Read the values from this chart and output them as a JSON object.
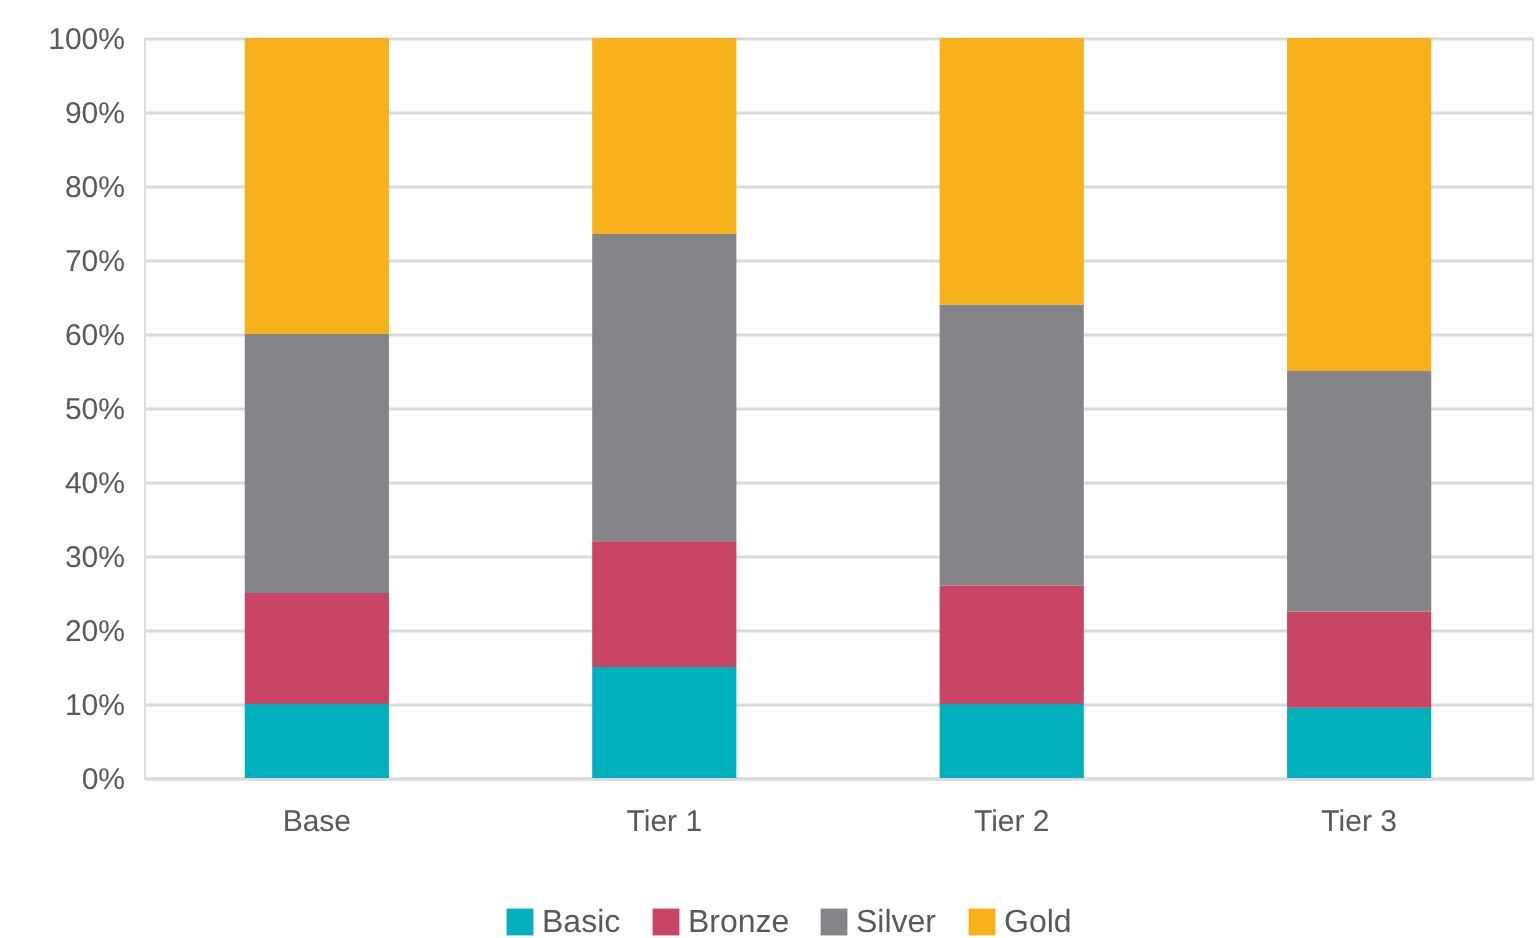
{
  "chart_data": {
    "type": "bar",
    "stacked": true,
    "categories": [
      "Base",
      "Tier 1",
      "Tier 2",
      "Tier 3"
    ],
    "series": [
      {
        "name": "Basic",
        "color": "#00b0bd",
        "values": [
          10,
          15,
          10,
          9.5
        ]
      },
      {
        "name": "Bronze",
        "color": "#c84564",
        "values": [
          15,
          17,
          16,
          13
        ]
      },
      {
        "name": "Silver",
        "color": "#858488",
        "values": [
          35,
          41.5,
          38,
          32.5
        ]
      },
      {
        "name": "Gold",
        "color": "#f7b21b",
        "values": [
          40,
          26.5,
          36,
          45
        ]
      }
    ],
    "ylim": [
      0,
      100
    ],
    "yticks": [
      {
        "value": 0,
        "label": "0%"
      },
      {
        "value": 10,
        "label": "10%"
      },
      {
        "value": 20,
        "label": "20%"
      },
      {
        "value": 30,
        "label": "30%"
      },
      {
        "value": 40,
        "label": "40%"
      },
      {
        "value": 50,
        "label": "50%"
      },
      {
        "value": 60,
        "label": "60%"
      },
      {
        "value": 70,
        "label": "70%"
      },
      {
        "value": 80,
        "label": "80%"
      },
      {
        "value": 90,
        "label": "90%"
      },
      {
        "value": 100,
        "label": "100%"
      }
    ],
    "grid": "y",
    "legend": "bottom"
  }
}
